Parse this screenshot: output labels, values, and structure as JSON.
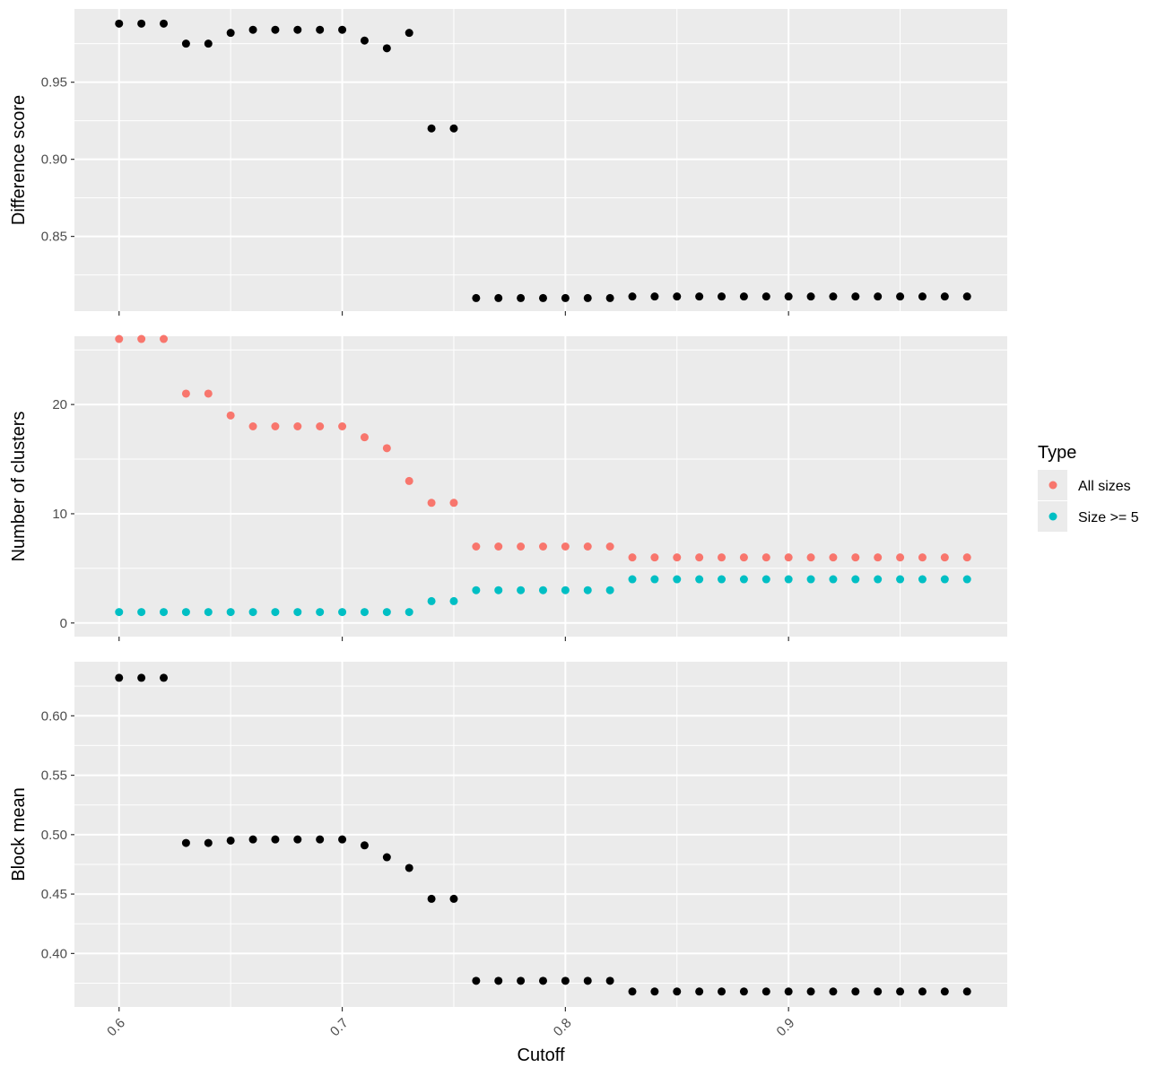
{
  "figure": {
    "xlabel": "Cutoff",
    "xticks": [
      "0.6",
      "0.7",
      "0.8",
      "0.9"
    ]
  },
  "legend": {
    "title": "Type",
    "items": [
      {
        "label": "All sizes",
        "color": "#F8766D"
      },
      {
        "label": "Size >= 5",
        "color": "#00BFC4"
      }
    ]
  },
  "colors": {
    "panel_bg": "#EBEBEB",
    "grid": "#FFFFFF",
    "point_default": "#000000",
    "tick_text": "#4D4D4D"
  },
  "chart_data": [
    {
      "type": "scatter",
      "title": "",
      "xlabel": "Cutoff",
      "ylabel": "Difference score",
      "xlim": [
        0.58,
        0.998
      ],
      "ylim": [
        0.8015,
        0.9975
      ],
      "yticks": [
        "0.85",
        "0.90",
        "0.95"
      ],
      "grid": true,
      "x": [
        0.6,
        0.61,
        0.62,
        0.63,
        0.64,
        0.65,
        0.66,
        0.67,
        0.68,
        0.69,
        0.7,
        0.71,
        0.72,
        0.73,
        0.74,
        0.75,
        0.76,
        0.77,
        0.78,
        0.79,
        0.8,
        0.81,
        0.82,
        0.83,
        0.84,
        0.85,
        0.86,
        0.87,
        0.88,
        0.89,
        0.9,
        0.91,
        0.92,
        0.93,
        0.94,
        0.95,
        0.96,
        0.97,
        0.98
      ],
      "series": [
        {
          "color": "#000000",
          "values": [
            0.988,
            0.988,
            0.988,
            0.975,
            0.975,
            0.982,
            0.984,
            0.984,
            0.984,
            0.984,
            0.984,
            0.977,
            0.972,
            0.982,
            0.92,
            0.92,
            0.81,
            0.81,
            0.81,
            0.81,
            0.81,
            0.81,
            0.81,
            0.811,
            0.811,
            0.811,
            0.811,
            0.811,
            0.811,
            0.811,
            0.811,
            0.811,
            0.811,
            0.811,
            0.811,
            0.811,
            0.811,
            0.811,
            0.811
          ]
        }
      ]
    },
    {
      "type": "scatter",
      "title": "",
      "xlabel": "Cutoff",
      "ylabel": "Number of clusters",
      "xlim": [
        0.58,
        0.998
      ],
      "ylim": [
        -1.25,
        26.25
      ],
      "yticks": [
        "0",
        "10",
        "20"
      ],
      "grid": true,
      "legend": "right",
      "x": [
        0.6,
        0.61,
        0.62,
        0.63,
        0.64,
        0.65,
        0.66,
        0.67,
        0.68,
        0.69,
        0.7,
        0.71,
        0.72,
        0.73,
        0.74,
        0.75,
        0.76,
        0.77,
        0.78,
        0.79,
        0.8,
        0.81,
        0.82,
        0.83,
        0.84,
        0.85,
        0.86,
        0.87,
        0.88,
        0.89,
        0.9,
        0.91,
        0.92,
        0.93,
        0.94,
        0.95,
        0.96,
        0.97,
        0.98
      ],
      "series": [
        {
          "name": "All sizes",
          "color": "#F8766D",
          "values": [
            26,
            26,
            26,
            21,
            21,
            19,
            18,
            18,
            18,
            18,
            18,
            17,
            16,
            13,
            11,
            11,
            7,
            7,
            7,
            7,
            7,
            7,
            7,
            6,
            6,
            6,
            6,
            6,
            6,
            6,
            6,
            6,
            6,
            6,
            6,
            6,
            6,
            6,
            6
          ]
        },
        {
          "name": "Size >= 5",
          "color": "#00BFC4",
          "values": [
            1,
            1,
            1,
            1,
            1,
            1,
            1,
            1,
            1,
            1,
            1,
            1,
            1,
            1,
            2,
            2,
            3,
            3,
            3,
            3,
            3,
            3,
            3,
            4,
            4,
            4,
            4,
            4,
            4,
            4,
            4,
            4,
            4,
            4,
            4,
            4,
            4,
            4,
            4
          ]
        }
      ]
    },
    {
      "type": "scatter",
      "title": "",
      "xlabel": "Cutoff",
      "ylabel": "Block mean",
      "xlim": [
        0.58,
        0.998
      ],
      "ylim": [
        0.355,
        0.6455
      ],
      "yticks": [
        "0.40",
        "0.45",
        "0.50",
        "0.55",
        "0.60"
      ],
      "grid": true,
      "x": [
        0.6,
        0.61,
        0.62,
        0.63,
        0.64,
        0.65,
        0.66,
        0.67,
        0.68,
        0.69,
        0.7,
        0.71,
        0.72,
        0.73,
        0.74,
        0.75,
        0.76,
        0.77,
        0.78,
        0.79,
        0.8,
        0.81,
        0.82,
        0.83,
        0.84,
        0.85,
        0.86,
        0.87,
        0.88,
        0.89,
        0.9,
        0.91,
        0.92,
        0.93,
        0.94,
        0.95,
        0.96,
        0.97,
        0.98
      ],
      "series": [
        {
          "color": "#000000",
          "values": [
            0.632,
            0.632,
            0.632,
            0.493,
            0.493,
            0.495,
            0.496,
            0.496,
            0.496,
            0.496,
            0.496,
            0.491,
            0.481,
            0.472,
            0.446,
            0.446,
            0.377,
            0.377,
            0.377,
            0.377,
            0.377,
            0.377,
            0.377,
            0.368,
            0.368,
            0.368,
            0.368,
            0.368,
            0.368,
            0.368,
            0.368,
            0.368,
            0.368,
            0.368,
            0.368,
            0.368,
            0.368,
            0.368,
            0.368
          ]
        }
      ]
    }
  ]
}
